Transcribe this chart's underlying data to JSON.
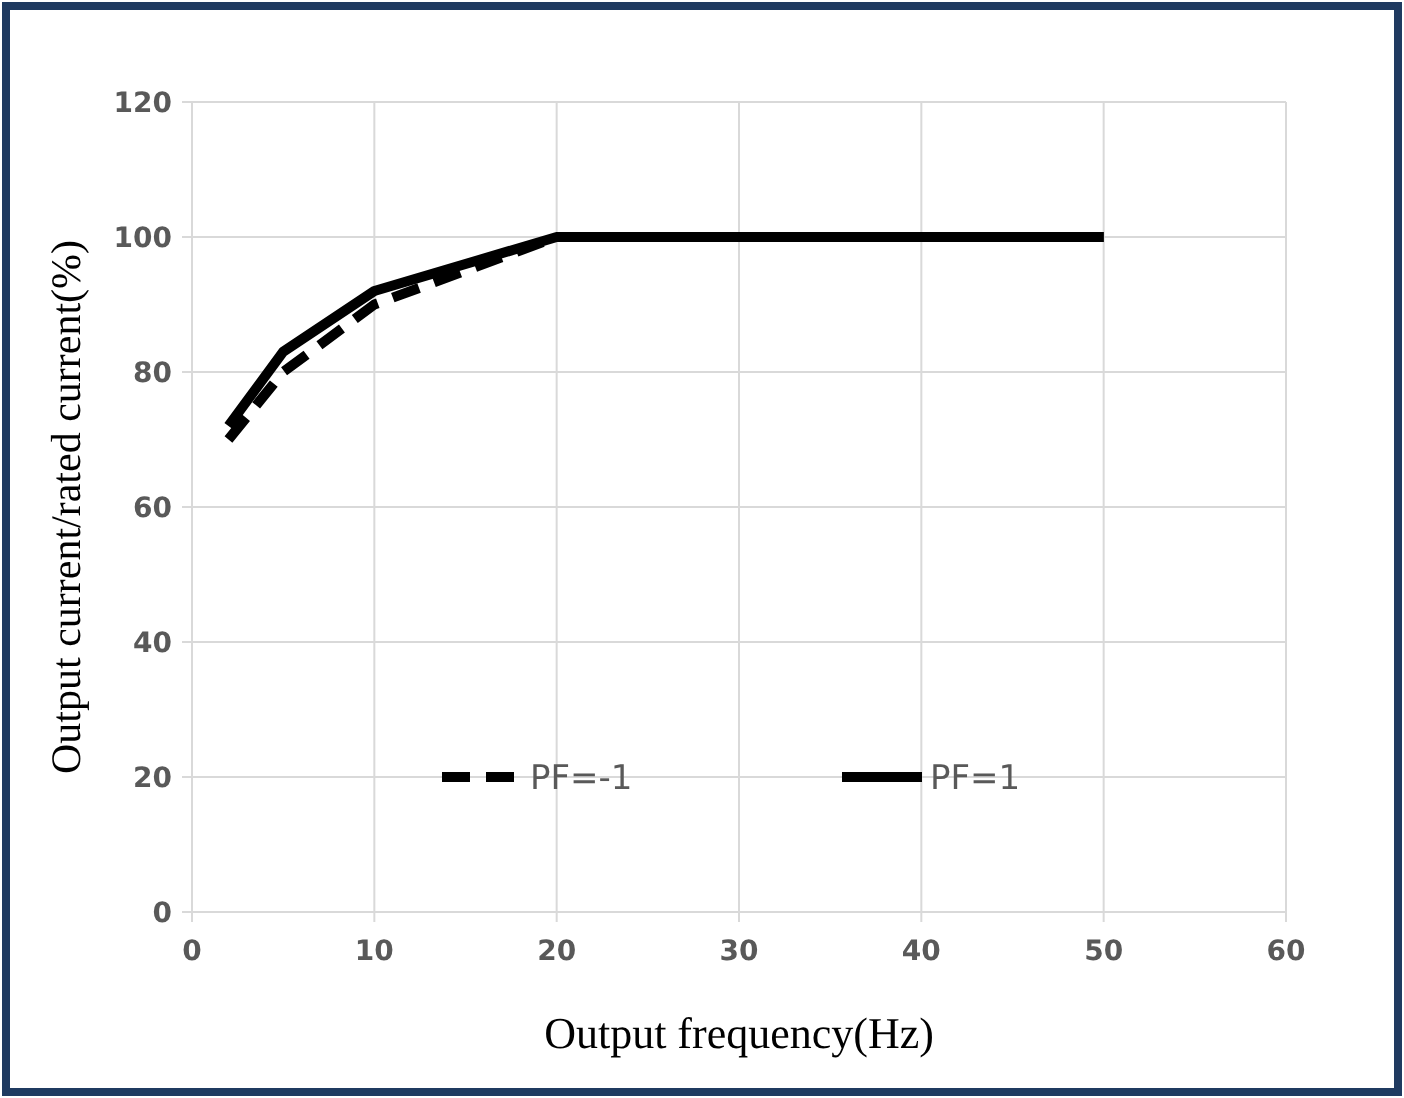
{
  "chart_data": {
    "type": "line",
    "xlabel": "Output frequency(Hz)",
    "ylabel": "Output current/rated current(%)",
    "xlim": [
      0,
      60
    ],
    "xticks": [
      0,
      10,
      20,
      30,
      40,
      50,
      60
    ],
    "ylim": [
      0,
      120
    ],
    "yticks": [
      0,
      20,
      40,
      60,
      80,
      100,
      120
    ],
    "grid": true,
    "legend": "bottom",
    "marker": "none",
    "series": [
      {
        "name": "PF=-1",
        "color": "#000000",
        "line_style": "dashed",
        "x": [
          2,
          5,
          10,
          20,
          50
        ],
        "values": [
          70,
          80,
          90,
          100,
          100
        ]
      },
      {
        "name": "PF=1",
        "color": "#000000",
        "line_style": "solid",
        "x": [
          2,
          5,
          10,
          20,
          50
        ],
        "values": [
          72,
          83,
          92,
          100,
          100
        ]
      }
    ]
  }
}
